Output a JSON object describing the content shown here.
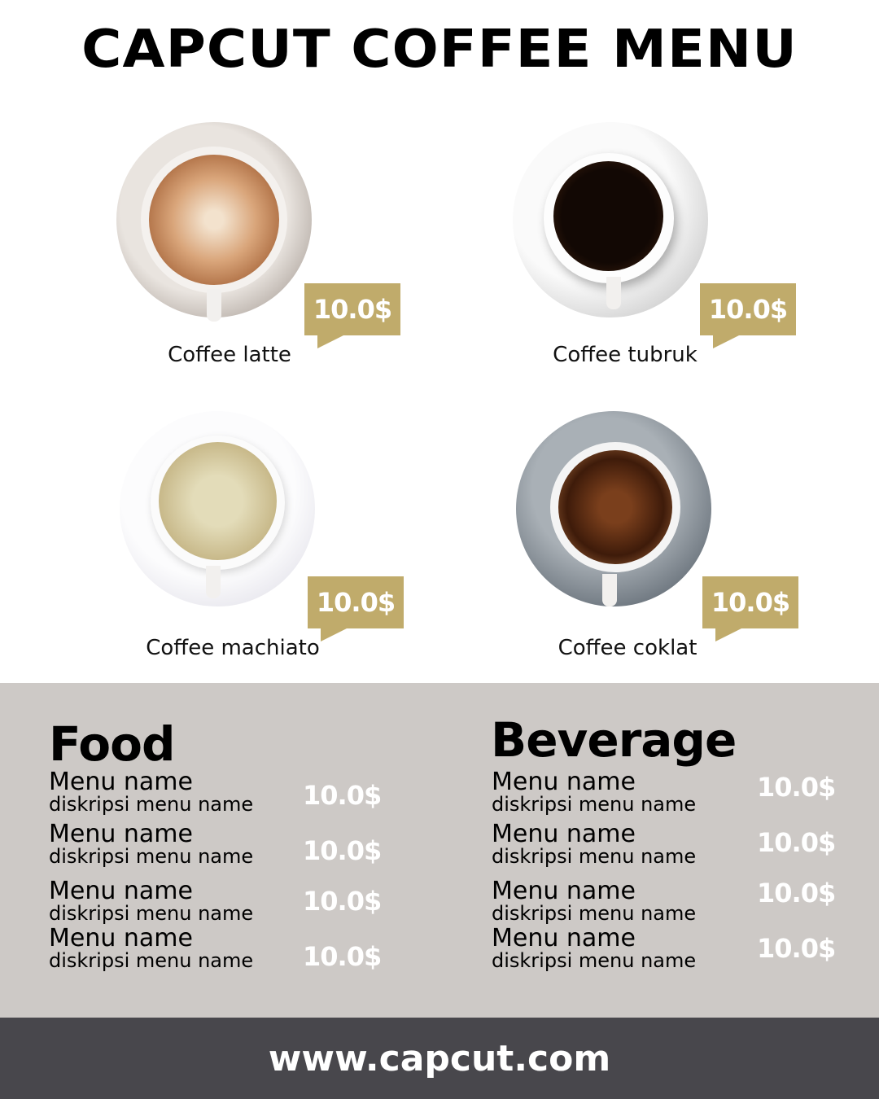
{
  "title": "CAPCUT COFFEE MENU",
  "colors": {
    "accent": "#c0ab6b",
    "panel": "#cdc9c6",
    "footer": "#48474c"
  },
  "coffees": [
    {
      "name": "Coffee latte",
      "price": "10.0$"
    },
    {
      "name": "Coffee tubruk",
      "price": "10.0$"
    },
    {
      "name": "Coffee machiato",
      "price": "10.0$"
    },
    {
      "name": "Coffee coklat",
      "price": "10.0$"
    }
  ],
  "food": {
    "title": "Food",
    "items": [
      {
        "name": "Menu name",
        "desc": "diskripsi menu name",
        "price": "10.0$"
      },
      {
        "name": "Menu name",
        "desc": "diskripsi menu name",
        "price": "10.0$"
      },
      {
        "name": "Menu name",
        "desc": "diskripsi menu name",
        "price": "10.0$"
      },
      {
        "name": "Menu name",
        "desc": "diskripsi menu name",
        "price": "10.0$"
      }
    ]
  },
  "beverage": {
    "title": "Beverage",
    "items": [
      {
        "name": "Menu name",
        "desc": "diskripsi menu name",
        "price": "10.0$"
      },
      {
        "name": "Menu name",
        "desc": "diskripsi menu name",
        "price": "10.0$"
      },
      {
        "name": "Menu name",
        "desc": "diskripsi menu name",
        "price": "10.0$"
      },
      {
        "name": "Menu name",
        "desc": "diskripsi menu name",
        "price": "10.0$"
      }
    ]
  },
  "footer": {
    "url": "www.capcut.com"
  }
}
